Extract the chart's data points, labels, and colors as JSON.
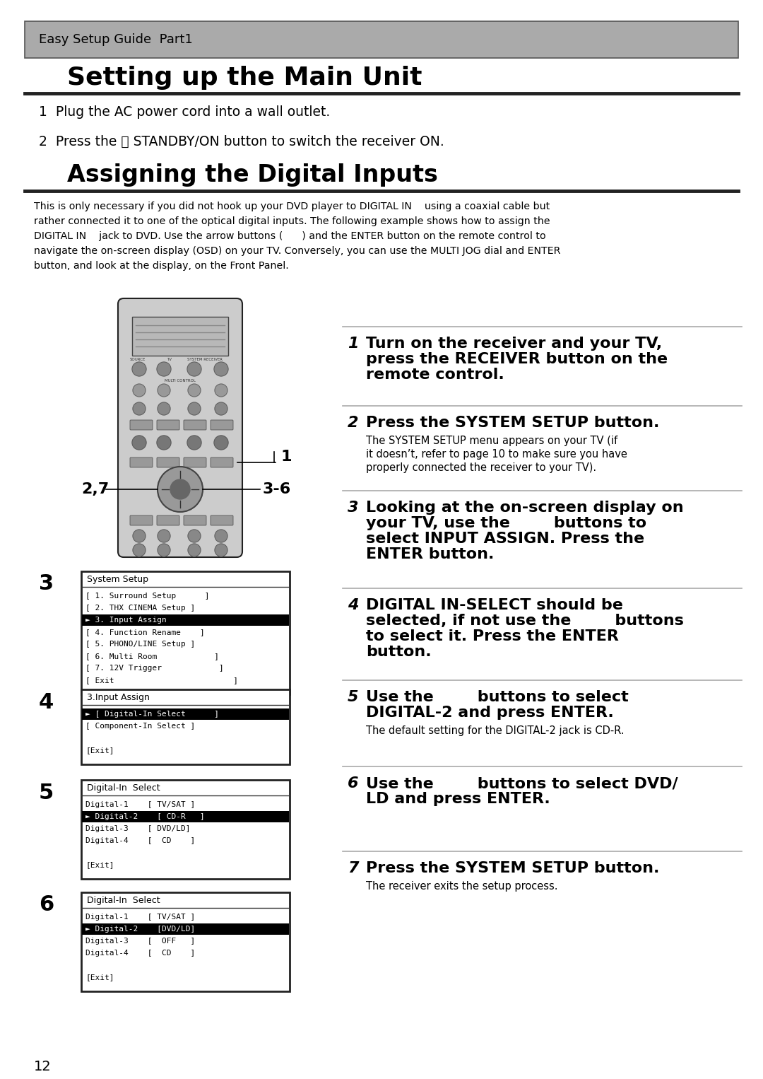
{
  "page_bg": "#ffffff",
  "header_bg": "#aaaaaa",
  "header_text": "Easy Setup Guide  Part1",
  "title1": "Setting up the Main Unit",
  "title2": "Assigning the Digital Inputs",
  "step1_text": "1  Plug the AC power cord into a wall outlet.",
  "step2_text": "2  Press the ⏻ STANDBY/ON button to switch the receiver ON.",
  "intro_lines": [
    "This is only necessary if you did not hook up your DVD player to DIGITAL IN    using a coaxial cable but",
    "rather connected it to one of the optical digital inputs. The following example shows how to assign the",
    "DIGITAL IN    jack to DVD. Use the arrow buttons (      ) and the ENTER button on the remote control to",
    "navigate the on-screen display (OSD) on your TV. Conversely, you can use the MULTI JOG dial and ENTER",
    "button, and look at the display, on the Front Panel."
  ],
  "right_steps": [
    {
      "num": "1",
      "bold_lines": [
        "Turn on the receiver and your TV,",
        "press the RECEIVER button on the",
        "remote control."
      ],
      "sub_lines": []
    },
    {
      "num": "2",
      "bold_lines": [
        "Press the SYSTEM SETUP button."
      ],
      "sub_lines": [
        "The SYSTEM SETUP menu appears on your TV (if",
        "it doesn’t, refer to page 10 to make sure you have",
        "properly connected the receiver to your TV)."
      ]
    },
    {
      "num": "3",
      "bold_lines": [
        "Looking at the on-screen display on",
        "your TV, use the        buttons to",
        "select INPUT ASSIGN. Press the",
        "ENTER button."
      ],
      "sub_lines": []
    },
    {
      "num": "4",
      "bold_lines": [
        "DIGITAL IN-SELECT should be",
        "selected, if not use the        buttons",
        "to select it. Press the ENTER",
        "button."
      ],
      "sub_lines": []
    },
    {
      "num": "5",
      "bold_lines": [
        "Use the        buttons to select",
        "DIGITAL-2 and press ENTER."
      ],
      "sub_lines": [
        "The default setting for the DIGITAL-2 jack is CD-R."
      ]
    },
    {
      "num": "6",
      "bold_lines": [
        "Use the        buttons to select DVD/",
        "LD and press ENTER."
      ],
      "sub_lines": []
    },
    {
      "num": "7",
      "bold_lines": [
        "Press the SYSTEM SETUP button."
      ],
      "sub_lines": [
        "The receiver exits the setup process."
      ]
    }
  ],
  "screen3_title": "System Setup",
  "screen3_items": [
    {
      "text": "[ 1. Surround Setup      ]",
      "highlight": false
    },
    {
      "text": "[ 2. THX CINEMA Setup ]",
      "highlight": false
    },
    {
      "text": "► 3. Input Assign           ",
      "highlight": true
    },
    {
      "text": "[ 4. Function Rename    ]",
      "highlight": false
    },
    {
      "text": "[ 5. PHONO/LINE Setup ]",
      "highlight": false
    },
    {
      "text": "[ 6. Multi Room            ]",
      "highlight": false
    },
    {
      "text": "[ 7. 12V Trigger            ]",
      "highlight": false
    },
    {
      "text": "[ Exit                         ]",
      "highlight": false
    }
  ],
  "screen4_title": "3.Input Assign",
  "screen4_items": [
    {
      "text": "► [ Digital-In Select      ]",
      "highlight": true
    },
    {
      "text": "[ Component-In Select ]",
      "highlight": false
    },
    {
      "text": "",
      "highlight": false
    },
    {
      "text": "[Exit]",
      "highlight": false
    }
  ],
  "screen5_title": "Digital-In  Select",
  "screen5_items": [
    {
      "text": "Digital-1    [ TV/SAT ]",
      "highlight": false
    },
    {
      "text": "► Digital-2    [ CD-R   ]",
      "highlight": true,
      "hl_part": "CD-R"
    },
    {
      "text": "Digital-3    [ DVD/LD]",
      "highlight": false
    },
    {
      "text": "Digital-4    [  CD    ]",
      "highlight": false
    },
    {
      "text": "",
      "highlight": false
    },
    {
      "text": "[Exit]",
      "highlight": false
    }
  ],
  "screen6_title": "Digital-In  Select",
  "screen6_items": [
    {
      "text": "Digital-1    [ TV/SAT ]",
      "highlight": false
    },
    {
      "text": "► Digital-2    [DVD/LD]",
      "highlight": true,
      "hl_part": "DVD/LD"
    },
    {
      "text": "Digital-3    [  OFF   ]",
      "highlight": false
    },
    {
      "text": "Digital-4    [  CD    ]",
      "highlight": false
    },
    {
      "text": "",
      "highlight": false
    },
    {
      "text": "[Exit]",
      "highlight": false
    }
  ],
  "page_num": "12"
}
